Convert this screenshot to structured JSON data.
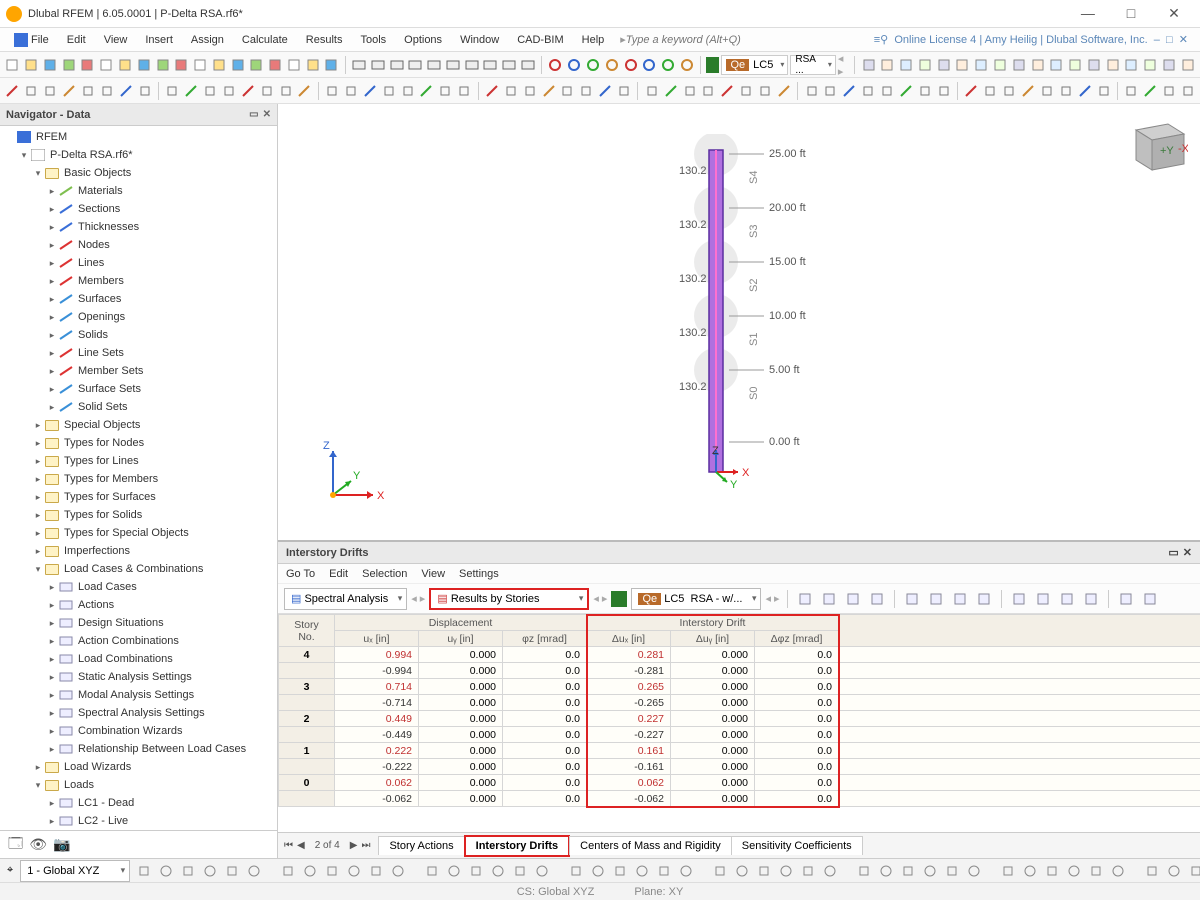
{
  "window": {
    "title": "Dlubal RFEM | 6.05.0001 | P-Delta RSA.rf6*",
    "license": "Online License 4 | Amy Heilig | Dlubal Software, Inc."
  },
  "menu": {
    "items": [
      "File",
      "Edit",
      "View",
      "Insert",
      "Assign",
      "Calculate",
      "Results",
      "Tools",
      "Options",
      "Window",
      "CAD-BIM",
      "Help"
    ],
    "search_placeholder": "Type a keyword (Alt+Q)"
  },
  "toolbar2": {
    "qe": "Qe",
    "lc5": "LC5",
    "rsa": "RSA ..."
  },
  "navigator": {
    "title": "Navigator - Data",
    "root": "RFEM",
    "model": "P-Delta RSA.rf6*",
    "groups": [
      {
        "label": "Basic Objects",
        "expanded": true,
        "children": [
          {
            "label": "Materials",
            "color": "#7fbf4f"
          },
          {
            "label": "Sections",
            "color": "#3a6fd8"
          },
          {
            "label": "Thicknesses",
            "color": "#3a6fd8"
          },
          {
            "label": "Nodes",
            "color": "#d33"
          },
          {
            "label": "Lines",
            "color": "#d33"
          },
          {
            "label": "Members",
            "color": "#d33"
          },
          {
            "label": "Surfaces",
            "color": "#3a90d8"
          },
          {
            "label": "Openings",
            "color": "#3a90d8"
          },
          {
            "label": "Solids",
            "color": "#3a90d8"
          },
          {
            "label": "Line Sets",
            "color": "#d33"
          },
          {
            "label": "Member Sets",
            "color": "#d33"
          },
          {
            "label": "Surface Sets",
            "color": "#3a90d8"
          },
          {
            "label": "Solid Sets",
            "color": "#3a90d8"
          }
        ]
      },
      {
        "label": "Special Objects"
      },
      {
        "label": "Types for Nodes"
      },
      {
        "label": "Types for Lines"
      },
      {
        "label": "Types for Members"
      },
      {
        "label": "Types for Surfaces"
      },
      {
        "label": "Types for Solids"
      },
      {
        "label": "Types for Special Objects"
      },
      {
        "label": "Imperfections"
      },
      {
        "label": "Load Cases & Combinations",
        "expanded": true,
        "children": [
          {
            "label": "Load Cases"
          },
          {
            "label": "Actions"
          },
          {
            "label": "Design Situations"
          },
          {
            "label": "Action Combinations"
          },
          {
            "label": "Load Combinations"
          },
          {
            "label": "Static Analysis Settings"
          },
          {
            "label": "Modal Analysis Settings"
          },
          {
            "label": "Spectral Analysis Settings"
          },
          {
            "label": "Combination Wizards"
          },
          {
            "label": "Relationship Between Load Cases"
          }
        ]
      },
      {
        "label": "Load Wizards"
      },
      {
        "label": "Loads",
        "expanded": true,
        "children": [
          {
            "label": "LC1 - Dead"
          },
          {
            "label": "LC2 - Live"
          }
        ]
      }
    ]
  },
  "viewport": {
    "stories": [
      {
        "label": "25.00 ft",
        "s": "S4",
        "load": "130.2 lb"
      },
      {
        "label": "20.00 ft",
        "s": "S3",
        "load": "130.2 lb"
      },
      {
        "label": "15.00 ft",
        "s": "S2",
        "load": "130.2 lb"
      },
      {
        "label": "10.00 ft",
        "s": "S1",
        "load": "130.2 lb"
      },
      {
        "label": "5.00 ft",
        "s": "S0",
        "load": "130.2 lb"
      },
      {
        "label": "0.00 ft"
      }
    ],
    "z_label": "Z"
  },
  "panel": {
    "title": "Interstory Drifts",
    "menu": [
      "Go To",
      "Edit",
      "Selection",
      "View",
      "Settings"
    ],
    "drop1": "Spectral Analysis",
    "drop2": "Results by Stories",
    "qe": "Qe",
    "lc5": "LC5",
    "rsa": "RSA - w/...",
    "headers": {
      "story": "Story\nNo.",
      "disp": "Displacement",
      "drift": "Interstory Drift",
      "ux": "uₓ [in]",
      "uy": "uᵧ [in]",
      "phz": "φz [mrad]",
      "dux": "Δuₓ [in]",
      "duy": "Δuᵧ [in]",
      "dphz": "Δφz [mrad]"
    },
    "rows": [
      {
        "sno": "4",
        "ux": "0.994",
        "uy": "0.000",
        "phz": "0.0",
        "dux": "0.281",
        "duy": "0.000",
        "dphz": "0.0",
        "uxw": 100,
        "duxw": 100
      },
      {
        "sno": "",
        "ux": "-0.994",
        "uy": "0.000",
        "phz": "0.0",
        "dux": "-0.281",
        "duy": "0.000",
        "dphz": "0.0",
        "uxw": 100,
        "duxw": 100
      },
      {
        "sno": "3",
        "ux": "0.714",
        "uy": "0.000",
        "phz": "0.0",
        "dux": "0.265",
        "duy": "0.000",
        "dphz": "0.0",
        "uxw": 72,
        "duxw": 94
      },
      {
        "sno": "",
        "ux": "-0.714",
        "uy": "0.000",
        "phz": "0.0",
        "dux": "-0.265",
        "duy": "0.000",
        "dphz": "0.0",
        "uxw": 72,
        "duxw": 94
      },
      {
        "sno": "2",
        "ux": "0.449",
        "uy": "0.000",
        "phz": "0.0",
        "dux": "0.227",
        "duy": "0.000",
        "dphz": "0.0",
        "uxw": 45,
        "duxw": 81
      },
      {
        "sno": "",
        "ux": "-0.449",
        "uy": "0.000",
        "phz": "0.0",
        "dux": "-0.227",
        "duy": "0.000",
        "dphz": "0.0",
        "uxw": 45,
        "duxw": 81
      },
      {
        "sno": "1",
        "ux": "0.222",
        "uy": "0.000",
        "phz": "0.0",
        "dux": "0.161",
        "duy": "0.000",
        "dphz": "0.0",
        "uxw": 22,
        "duxw": 57
      },
      {
        "sno": "",
        "ux": "-0.222",
        "uy": "0.000",
        "phz": "0.0",
        "dux": "-0.161",
        "duy": "0.000",
        "dphz": "0.0",
        "uxw": 22,
        "duxw": 57
      },
      {
        "sno": "0",
        "ux": "0.062",
        "uy": "0.000",
        "phz": "0.0",
        "dux": "0.062",
        "duy": "0.000",
        "dphz": "0.0",
        "uxw": 6,
        "duxw": 22
      },
      {
        "sno": "",
        "ux": "-0.062",
        "uy": "0.000",
        "phz": "0.0",
        "dux": "-0.062",
        "duy": "0.000",
        "dphz": "0.0",
        "uxw": 6,
        "duxw": 22
      }
    ],
    "pager": "2 of 4",
    "tabs": [
      "Story Actions",
      "Interstory Drifts",
      "Centers of Mass and Rigidity",
      "Sensitivity Coefficients"
    ],
    "active_tab": 1
  },
  "status": {
    "coord": "1 - Global XYZ",
    "cs": "CS: Global XYZ",
    "plane": "Plane: XY"
  },
  "colors": {
    "highlight_red": "#d22",
    "column": "#a050d0",
    "column_edge": "#5a2ea0"
  }
}
